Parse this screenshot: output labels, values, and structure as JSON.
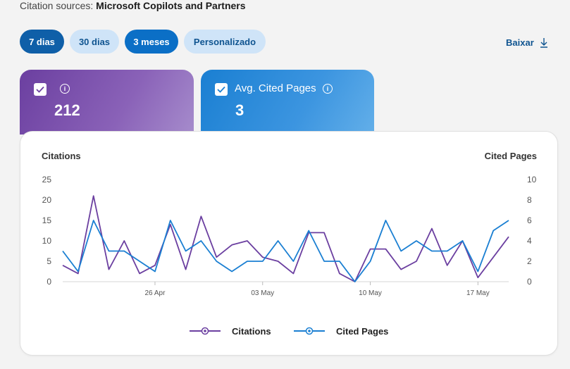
{
  "header": {
    "sources_label": "Citation sources:",
    "sources_value": "Microsoft Copilots and Partners"
  },
  "ranges": [
    {
      "label": "7 dias",
      "selected": true
    },
    {
      "label": "30 dias",
      "selected": false
    },
    {
      "label": "3 meses",
      "selected": true
    },
    {
      "label": "Personalizado",
      "selected": false
    }
  ],
  "download": {
    "label": "Baixar",
    "icon": "download-icon"
  },
  "cards": [
    {
      "title": "",
      "value": "212",
      "checked": true,
      "color": "#6b3fa0"
    },
    {
      "title": "Avg. Cited Pages",
      "value": "3",
      "checked": true,
      "color": "#1a7fd2"
    }
  ],
  "chart_data": {
    "type": "line",
    "y_left_label": "Citations",
    "y_right_label": "Cited Pages",
    "y_left_ticks": [
      "0",
      "5",
      "10",
      "15",
      "20",
      "25"
    ],
    "y_right_ticks": [
      "0",
      "2",
      "4",
      "6",
      "8",
      "10"
    ],
    "y_left_range": [
      0,
      25
    ],
    "y_right_range": [
      0,
      10
    ],
    "x_ticks": [
      {
        "label": "26 Apr",
        "index": 6
      },
      {
        "label": "03 May",
        "index": 13
      },
      {
        "label": "10 May",
        "index": 20
      },
      {
        "label": "17 May",
        "index": 27
      }
    ],
    "series": [
      {
        "name": "Citations",
        "axis": "left",
        "color": "#6b3fa0",
        "values": [
          4,
          2,
          21,
          3,
          10,
          2,
          4,
          14,
          3,
          16,
          6,
          9,
          10,
          6,
          5,
          2,
          12,
          12,
          2,
          0,
          8,
          8,
          3,
          5,
          13,
          4,
          10,
          1,
          6,
          11
        ]
      },
      {
        "name": "Cited Pages",
        "axis": "right",
        "color": "#1a7fd2",
        "values": [
          3,
          1,
          6,
          3,
          3,
          2,
          1,
          6,
          3,
          4,
          2,
          1,
          2,
          2,
          4,
          2,
          5,
          2,
          2,
          0,
          2,
          6,
          3,
          4,
          3,
          3,
          4,
          1,
          5,
          6
        ]
      }
    ],
    "legend": [
      "Citations",
      "Cited Pages"
    ],
    "legend_position": "bottom"
  }
}
